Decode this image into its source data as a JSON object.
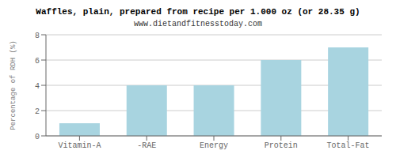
{
  "chart_data": {
    "type": "bar",
    "title": "Waffles, plain, prepared from recipe per 1.000 oz (or 28.35 g)",
    "subtitle": "www.dietandfitnesstoday.com",
    "categories": [
      "Vitamin-A",
      "-RAE",
      "Energy",
      "Protein",
      "Total-Fat"
    ],
    "values": [
      1.0,
      4.0,
      4.0,
      6.0,
      7.0
    ],
    "color": "#a8d4e0",
    "ylabel": "Percentage of RDH (%)",
    "ylim": [
      0,
      8
    ],
    "yticks": [
      0,
      2,
      4,
      6,
      8
    ],
    "grid": true
  }
}
